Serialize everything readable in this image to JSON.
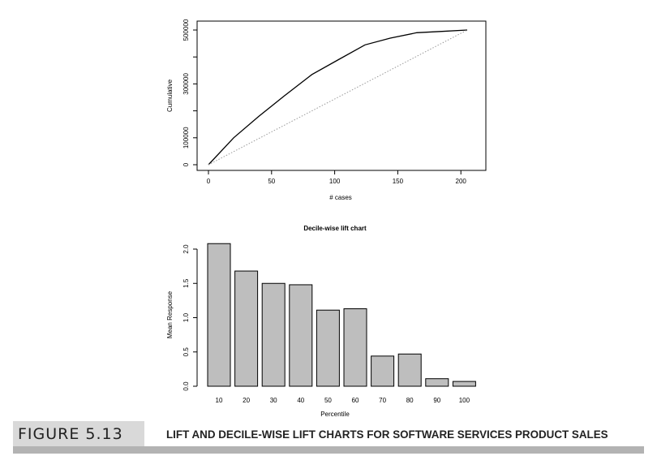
{
  "chart_data": [
    {
      "type": "line",
      "title": "",
      "xlabel": "# cases",
      "ylabel": "Cumulative",
      "xlim": [
        0,
        205
      ],
      "ylim": [
        0,
        500000
      ],
      "x_ticks": [
        0,
        50,
        100,
        150,
        200
      ],
      "y_ticks": [
        0,
        100000,
        300000,
        500000
      ],
      "y_minor_ticks": [
        200000,
        400000
      ],
      "series": [
        {
          "style": "solid",
          "x": [
            0,
            20,
            40,
            60,
            82,
            103,
            124,
            144,
            165,
            185,
            205
          ],
          "y": [
            0,
            100000,
            180000,
            255000,
            335000,
            390000,
            445000,
            470000,
            490000,
            495000,
            500000
          ]
        },
        {
          "style": "dotted",
          "color": "#999999",
          "x": [
            0,
            205
          ],
          "y": [
            0,
            500000
          ]
        }
      ]
    },
    {
      "type": "bar",
      "title": "Decile-wise lift chart",
      "xlabel": "Percentile",
      "ylabel": "Mean Response",
      "categories": [
        "10",
        "20",
        "30",
        "40",
        "50",
        "60",
        "70",
        "80",
        "90",
        "100"
      ],
      "values": [
        2.08,
        1.68,
        1.5,
        1.48,
        1.11,
        1.13,
        0.44,
        0.47,
        0.11,
        0.07
      ],
      "ylim": [
        0,
        2.1
      ],
      "y_ticks": [
        "0.0",
        "0.5",
        "1.0",
        "1.5",
        "2.0"
      ],
      "bar_color": "#bebebe"
    }
  ],
  "caption": {
    "label": "FIGURE 5.13",
    "text": "LIFT AND DECILE-WISE LIFT CHARTS FOR SOFTWARE SERVICES PRODUCT SALES"
  }
}
